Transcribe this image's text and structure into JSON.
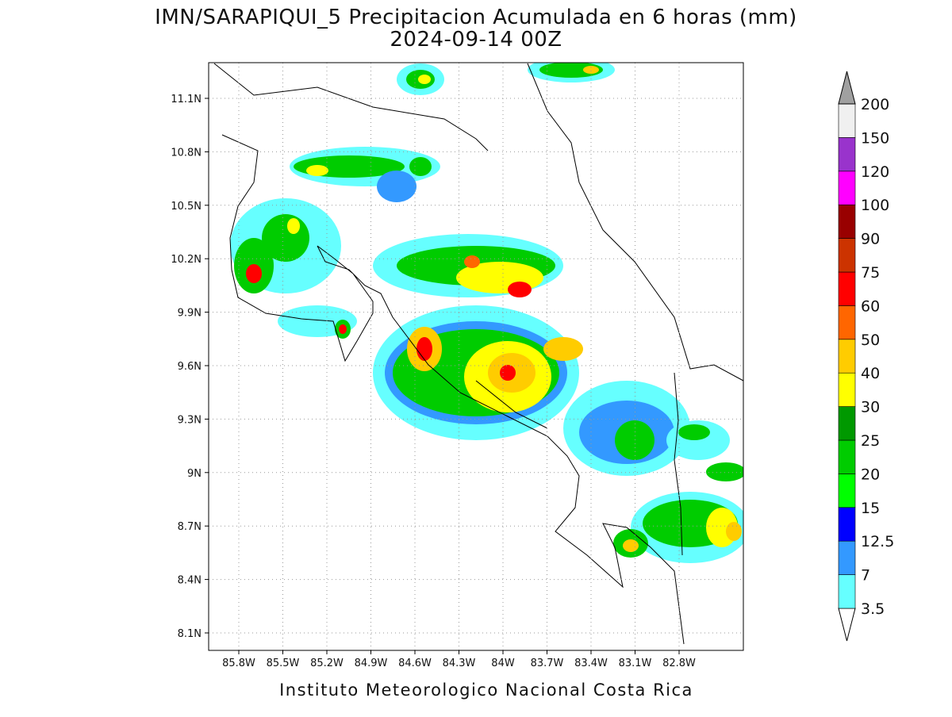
{
  "title": "IMN/SARAPIQUI_5 Precipitacion Acumulada en 6 horas (mm)",
  "subtitle": "2024-09-14 00Z",
  "map": {
    "lat_labels": [
      "11.1N",
      "10.8N",
      "10.5N",
      "10.2N",
      "9.9N",
      "9.6N",
      "9.3N",
      "9N",
      "8.7N",
      "8.4N",
      "8.1N"
    ],
    "lon_labels": [
      "85.8W",
      "85.5W",
      "85.2W",
      "84.9W",
      "84.6W",
      "84.3W",
      "84W",
      "83.7W",
      "83.4W",
      "83.1W",
      "82.8W"
    ]
  },
  "colorbar": {
    "levels": [
      3.5,
      7,
      12.5,
      15,
      20,
      25,
      30,
      40,
      50,
      60,
      75,
      90,
      100,
      120,
      150,
      200
    ],
    "colors": [
      "#ffffff",
      "#66ffff",
      "#3399ff",
      "#0000ff",
      "#00ff00",
      "#00cc00",
      "#009900",
      "#ffff00",
      "#ffcc00",
      "#ff6600",
      "#ff0000",
      "#cc3300",
      "#990000",
      "#ff00ff",
      "#9933cc",
      "#f0f0f0",
      "#a0a0a0"
    ]
  },
  "footer": "Instituto Meteorologico Nacional Costa Rica"
}
